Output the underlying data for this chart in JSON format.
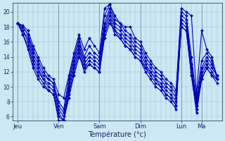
{
  "xlabel": "Température (°c)",
  "background_color": "#cce8f2",
  "line_color": "#0000bb",
  "markersize": 2.2,
  "linewidth": 0.8,
  "ylim": [
    5.5,
    21.2
  ],
  "yticks": [
    6,
    8,
    10,
    12,
    14,
    16,
    18,
    20
  ],
  "grid_color": "#99bbcc",
  "day_labels": [
    "Jeu",
    "Ven",
    "Sam",
    "Dim",
    "Lun",
    "Ma"
  ],
  "day_positions": [
    0,
    8,
    16,
    24,
    32,
    36
  ],
  "xlim": [
    -1,
    40
  ],
  "n_hours_per_day": 8,
  "series": [
    [
      18.5,
      18.2,
      17.5,
      15.5,
      14.0,
      12.5,
      11.5,
      11.0,
      9.0,
      8.5,
      11.5,
      14.5,
      17.0,
      15.0,
      16.5,
      15.5,
      14.5,
      20.5,
      21.0,
      19.5,
      18.5,
      18.0,
      18.0,
      16.5,
      16.0,
      14.5,
      13.5,
      12.5,
      12.0,
      11.0,
      10.5,
      9.5,
      20.5,
      20.0,
      19.5,
      9.0,
      17.5,
      15.0,
      14.0,
      11.0
    ],
    [
      18.5,
      18.0,
      17.0,
      15.0,
      13.5,
      12.0,
      11.0,
      10.5,
      8.0,
      7.0,
      11.0,
      14.0,
      16.5,
      14.0,
      15.5,
      14.5,
      14.0,
      19.5,
      21.0,
      19.0,
      18.5,
      17.5,
      17.0,
      16.0,
      15.5,
      14.0,
      13.0,
      12.0,
      11.5,
      10.5,
      10.0,
      9.0,
      20.0,
      19.5,
      14.0,
      8.5,
      13.5,
      14.5,
      13.5,
      11.5
    ],
    [
      18.5,
      18.0,
      17.0,
      14.5,
      13.0,
      11.5,
      11.0,
      10.5,
      7.5,
      6.5,
      10.5,
      13.5,
      16.0,
      13.5,
      14.5,
      14.0,
      13.5,
      18.5,
      20.5,
      18.5,
      18.0,
      17.0,
      16.5,
      15.5,
      15.0,
      13.5,
      12.5,
      11.5,
      11.0,
      10.0,
      9.5,
      8.5,
      19.5,
      19.0,
      13.0,
      8.0,
      12.5,
      14.0,
      13.0,
      11.5
    ],
    [
      18.5,
      17.5,
      16.5,
      14.0,
      12.5,
      11.0,
      10.5,
      10.0,
      7.0,
      6.0,
      10.0,
      13.0,
      15.5,
      13.0,
      14.0,
      13.5,
      13.0,
      18.0,
      20.0,
      18.0,
      17.5,
      16.5,
      16.0,
      15.0,
      14.5,
      13.0,
      12.0,
      11.0,
      10.5,
      9.5,
      9.0,
      8.0,
      19.0,
      18.5,
      12.5,
      7.5,
      12.0,
      13.5,
      12.5,
      11.5
    ],
    [
      18.5,
      17.5,
      16.0,
      13.5,
      12.0,
      11.0,
      10.0,
      9.5,
      6.5,
      5.5,
      9.5,
      12.5,
      15.0,
      12.5,
      13.5,
      13.0,
      12.5,
      17.5,
      19.5,
      17.5,
      17.0,
      16.0,
      15.5,
      14.5,
      14.0,
      12.5,
      11.5,
      10.5,
      10.0,
      9.0,
      8.5,
      7.5,
      18.5,
      18.0,
      12.0,
      7.0,
      11.5,
      13.0,
      12.0,
      11.0
    ],
    [
      18.5,
      17.0,
      15.5,
      13.0,
      11.5,
      10.5,
      9.5,
      9.0,
      6.0,
      5.5,
      9.0,
      12.0,
      14.5,
      12.0,
      13.0,
      12.5,
      12.0,
      17.0,
      19.0,
      17.0,
      16.5,
      15.5,
      15.0,
      14.0,
      13.5,
      12.0,
      11.0,
      10.0,
      9.5,
      8.5,
      8.0,
      7.0,
      18.0,
      17.5,
      11.5,
      6.5,
      11.0,
      12.5,
      11.5,
      10.5
    ],
    [
      18.5,
      17.0,
      15.0,
      12.5,
      11.0,
      10.0,
      9.5,
      9.0,
      5.5,
      5.5,
      8.5,
      11.5,
      14.0,
      12.5,
      13.0,
      12.5,
      12.0,
      16.5,
      18.5,
      17.5,
      16.5,
      15.5,
      15.0,
      14.0,
      13.5,
      12.5,
      12.0,
      11.0,
      10.0,
      9.0,
      8.5,
      7.5,
      18.0,
      17.5,
      11.5,
      7.0,
      11.0,
      12.5,
      11.5,
      11.0
    ]
  ]
}
